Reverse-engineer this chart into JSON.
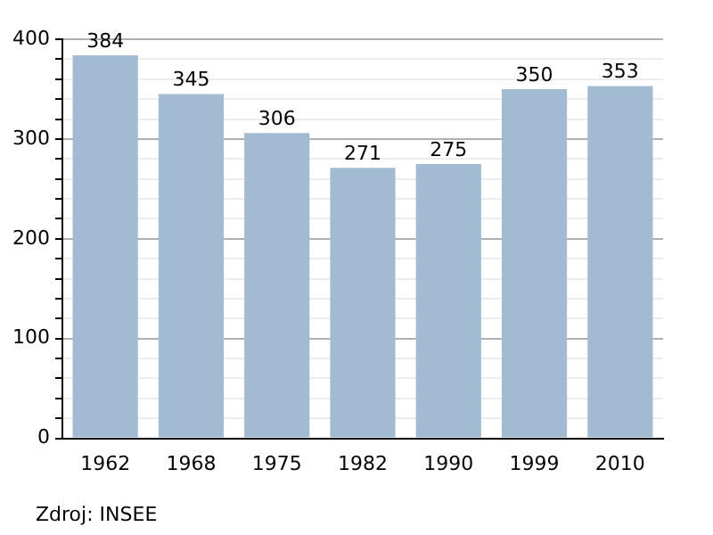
{
  "chart_data": {
    "type": "bar",
    "categories": [
      "1962",
      "1968",
      "1975",
      "1982",
      "1990",
      "1999",
      "2010"
    ],
    "values": [
      384,
      345,
      306,
      271,
      275,
      350,
      353
    ],
    "color": "#a3bad3",
    "ylim": [
      0,
      400
    ],
    "yticks": [
      0,
      {
        "value": 20,
        "label": null
      },
      {
        "value": 40,
        "label": null
      },
      {
        "value": 60,
        "label": null
      },
      {
        "value": 80,
        "label": null
      },
      100,
      {
        "value": 120,
        "label": null
      },
      {
        "value": 140,
        "label": null
      },
      {
        "value": 160,
        "label": null
      },
      {
        "value": 180,
        "label": null
      },
      200,
      {
        "value": 220,
        "label": null
      },
      {
        "value": 240,
        "label": null
      },
      {
        "value": 260,
        "label": null
      },
      {
        "value": 280,
        "label": null
      },
      300,
      {
        "value": 320,
        "label": null
      },
      {
        "value": 340,
        "label": null
      },
      {
        "value": 360,
        "label": null
      },
      {
        "value": 380,
        "label": null
      },
      400
    ],
    "grid": "y",
    "data_labels": true,
    "annotations": [
      "Zdroj: INSEE"
    ]
  }
}
